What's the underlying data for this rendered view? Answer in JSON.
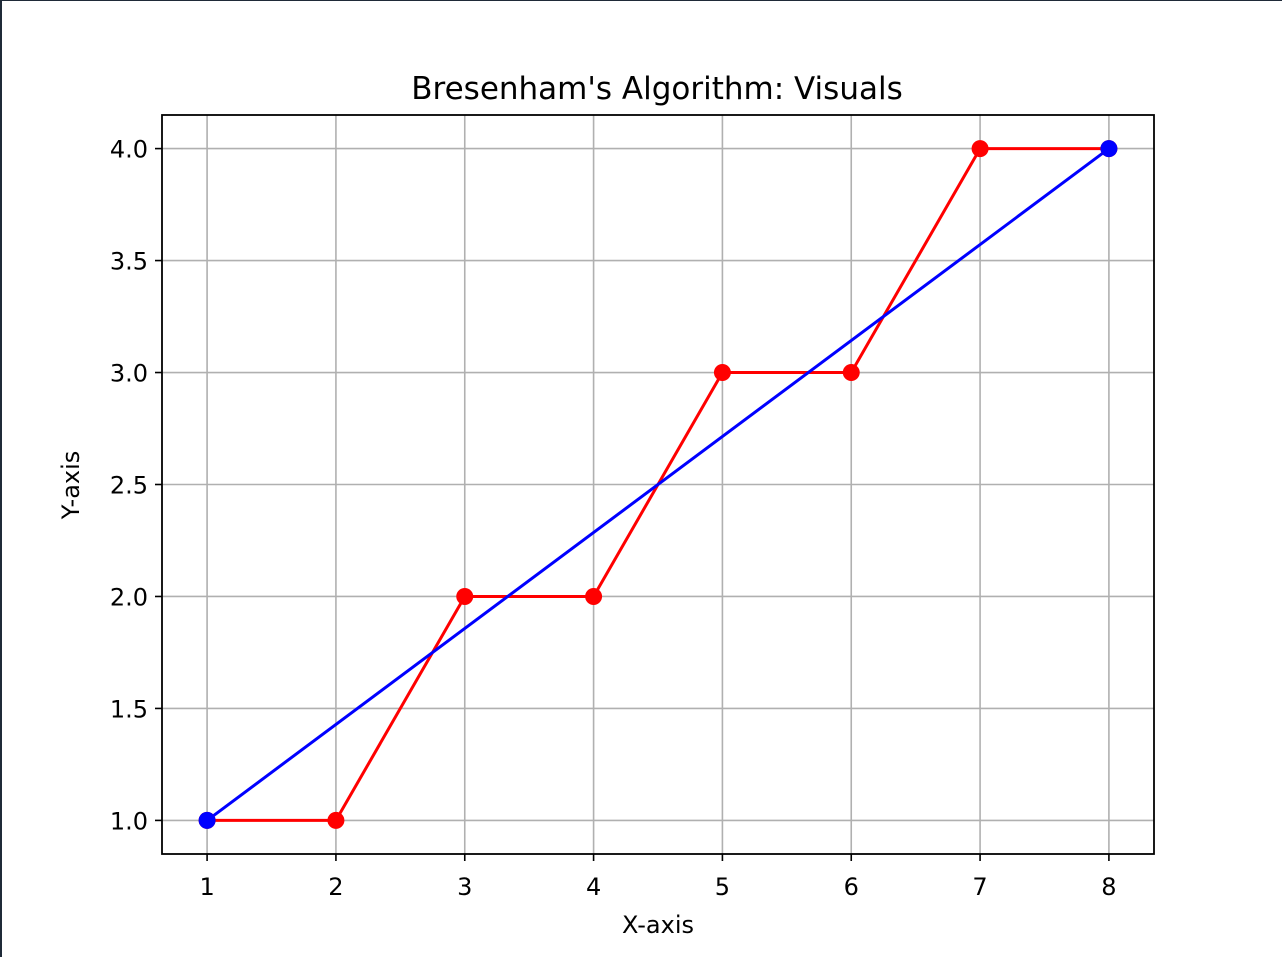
{
  "chart_data": {
    "type": "line",
    "title": "Bresenham's Algorithm: Visuals",
    "xlabel": "X-axis",
    "ylabel": "Y-axis",
    "xlim": [
      0.65,
      8.35
    ],
    "ylim": [
      0.85,
      4.15
    ],
    "x_ticks": [
      1,
      2,
      3,
      4,
      5,
      6,
      7,
      8
    ],
    "x_tick_labels": [
      "1",
      "2",
      "3",
      "4",
      "5",
      "6",
      "7",
      "8"
    ],
    "y_ticks": [
      1.0,
      1.5,
      2.0,
      2.5,
      3.0,
      3.5,
      4.0
    ],
    "y_tick_labels": [
      "1.0",
      "1.5",
      "2.0",
      "2.5",
      "3.0",
      "3.5",
      "4.0"
    ],
    "grid": true,
    "series": [
      {
        "color": "#ff0000",
        "marker": "circle",
        "x": [
          1,
          2,
          3,
          4,
          5,
          6,
          7,
          8
        ],
        "y": [
          1,
          1,
          2,
          2,
          3,
          3,
          4,
          4
        ]
      },
      {
        "color": "#0000ff",
        "marker": "circle",
        "x": [
          1,
          8
        ],
        "y": [
          1,
          4
        ]
      }
    ]
  }
}
